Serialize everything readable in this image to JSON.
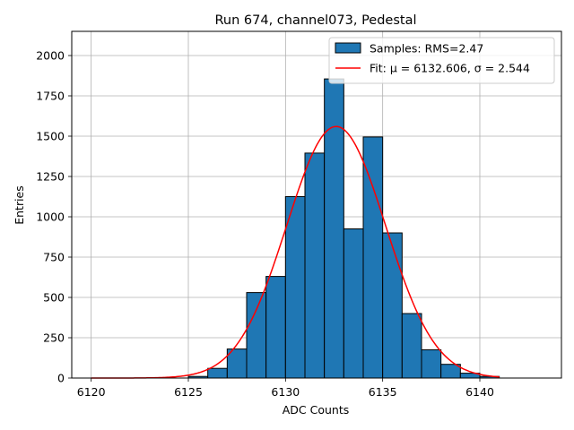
{
  "chart_data": {
    "type": "bar",
    "title": "Run 674, channel073, Pedestal",
    "xlabel": "ADC Counts",
    "ylabel": "Entries",
    "xlim": [
      6119,
      6144.2
    ],
    "ylim": [
      0,
      2150
    ],
    "grid": true,
    "legend_position": "top-right",
    "x_ticks": [
      6120,
      6125,
      6130,
      6135,
      6140
    ],
    "y_ticks": [
      0,
      250,
      500,
      750,
      1000,
      1250,
      1500,
      1750,
      2000
    ],
    "histogram": {
      "name": "Samples: RMS=2.47",
      "color": "#1f77b4",
      "edge_color": "#000000",
      "bin_edges": [
        6125,
        6126,
        6127,
        6128,
        6129,
        6130,
        6131,
        6132,
        6133,
        6134,
        6135,
        6136,
        6137,
        6138,
        6139,
        6140,
        6141
      ],
      "counts": [
        10,
        60,
        180,
        530,
        630,
        1125,
        1395,
        1855,
        925,
        1495,
        900,
        400,
        175,
        85,
        30,
        10
      ]
    },
    "fit": {
      "name": "Fit: μ = 6132.606, σ = 2.544",
      "color": "#ff0000",
      "mu": 6132.606,
      "sigma": 2.544,
      "amplitude": 1560,
      "x_range": [
        6120,
        6141
      ]
    }
  }
}
